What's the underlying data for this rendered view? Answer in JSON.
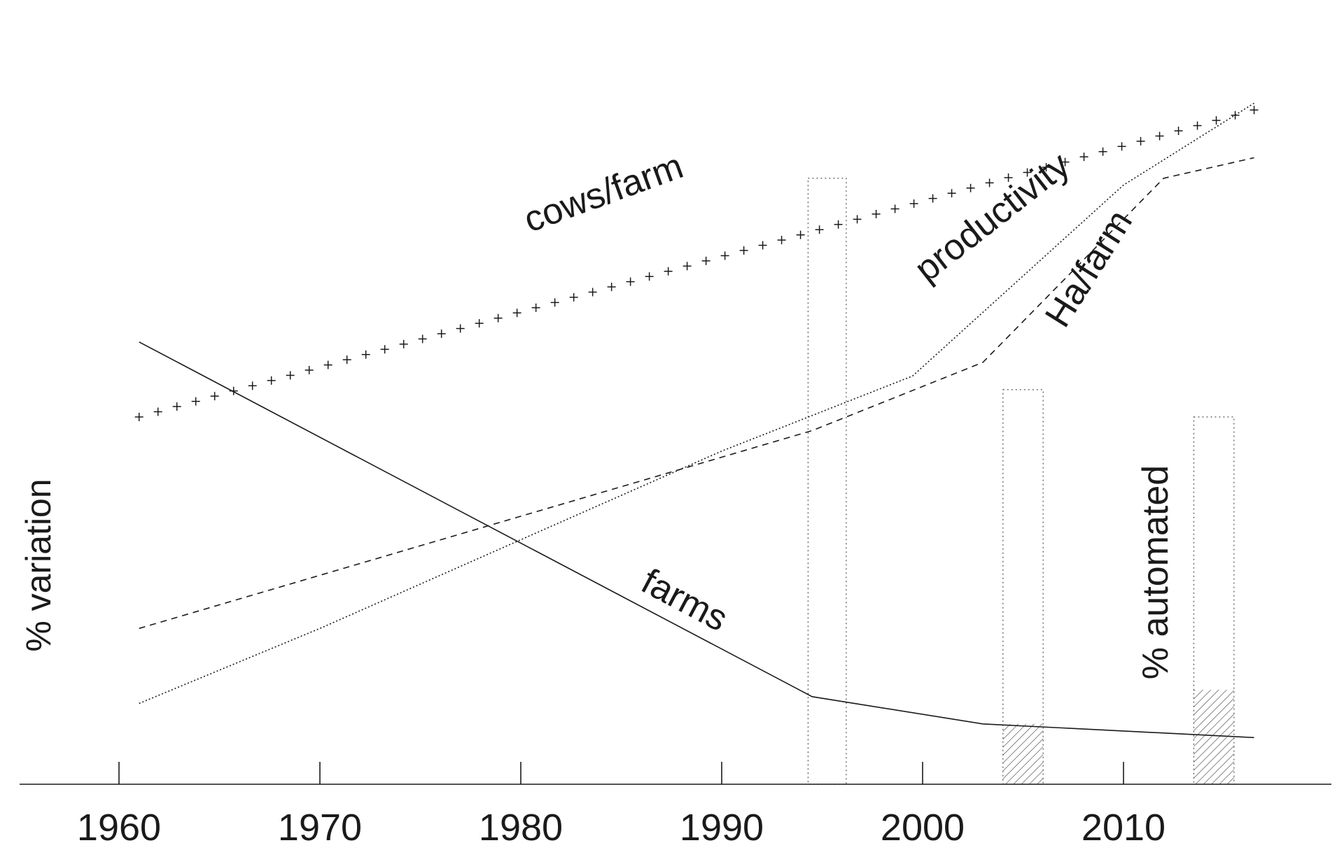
{
  "chart_data": {
    "type": "line",
    "title": "",
    "ylabel": "% variation",
    "xlabel": "",
    "x_ticks": [
      1960,
      1970,
      1980,
      1990,
      2000,
      2010
    ],
    "x_tick_labels": [
      "1960",
      "1970",
      "1980",
      "1990",
      "2000",
      "2010"
    ],
    "xlim": [
      1955,
      2020
    ],
    "ylim": [
      0,
      100
    ],
    "grid": false,
    "series": [
      {
        "name": "cows/farm",
        "label": "cows/farm",
        "style": "plus-markers",
        "x": [
          1961,
          2016.5
        ],
        "y": [
          52,
          97
        ]
      },
      {
        "name": "productivity",
        "label": "productivity",
        "style": "dotted",
        "x": [
          1961,
          1970,
          1980,
          1990,
          1999.5,
          2010,
          2016.5
        ],
        "y": [
          10,
          21,
          34,
          47,
          58,
          86,
          98
        ]
      },
      {
        "name": "Ha/farm",
        "label": "Ha/farm",
        "style": "dashed",
        "x": [
          1961,
          1994.5,
          2003,
          2012,
          2016.5
        ],
        "y": [
          21,
          50,
          60,
          87,
          90
        ]
      },
      {
        "name": "farms",
        "label": "farms",
        "style": "solid",
        "x": [
          1961,
          1994.5,
          2003,
          2016.5
        ],
        "y": [
          63,
          11,
          7,
          5
        ]
      }
    ],
    "bars": {
      "name": "% automated",
      "label": "% automated",
      "items": [
        {
          "x_start": 1994.3,
          "x_end": 1996.2,
          "total": 87,
          "automated": 0
        },
        {
          "x_start": 2004,
          "x_end": 2006,
          "total": 56,
          "automated": 7
        },
        {
          "x_start": 2013.5,
          "x_end": 2015.5,
          "total": 52,
          "automated": 12
        }
      ]
    }
  }
}
